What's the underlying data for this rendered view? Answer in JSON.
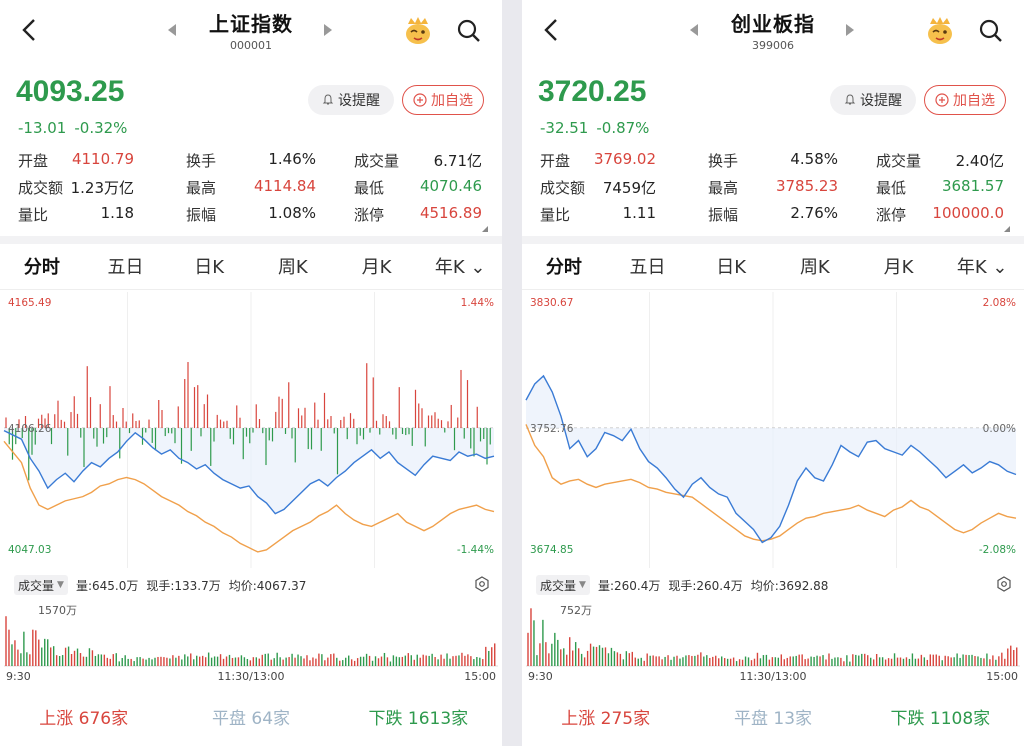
{
  "panels": [
    {
      "title": "上证指数",
      "code": "000001",
      "price": "4093.25",
      "change": "-13.01",
      "change_pct": "-0.32%",
      "alert_label": "设提醒",
      "fav_label": "加自选",
      "stats": [
        [
          {
            "l": "开盘",
            "v": "4110.79",
            "c": "red"
          },
          {
            "l": "换手",
            "v": "1.46%",
            "c": ""
          },
          {
            "l": "成交量",
            "v": "6.71亿",
            "c": ""
          }
        ],
        [
          {
            "l": "成交额",
            "v": "1.23万亿",
            "c": ""
          },
          {
            "l": "最高",
            "v": "4114.84",
            "c": "red"
          },
          {
            "l": "最低",
            "v": "4070.46",
            "c": "green"
          }
        ],
        [
          {
            "l": "量比",
            "v": "1.18",
            "c": ""
          },
          {
            "l": "振幅",
            "v": "1.08%",
            "c": ""
          },
          {
            "l": "涨停",
            "v": "4516.89",
            "c": "red"
          }
        ]
      ],
      "tabs": [
        "分时",
        "五日",
        "日K",
        "周K",
        "月K",
        "年K"
      ],
      "chart": {
        "y_top": "4165.49",
        "y_mid": "4106.26",
        "y_bot": "4047.03",
        "pct_top": "1.44%",
        "pct_mid": "",
        "pct_bot": "-1.44%",
        "price_line": [
          4105,
          4103,
          4101,
          4092,
          4086,
          4078,
          4082,
          4085,
          4081,
          4086,
          4090,
          4088,
          4092,
          4095,
          4100,
          4104,
          4101,
          4097,
          4094,
          4096,
          4092,
          4090,
          4087,
          4089,
          4085,
          4082,
          4080,
          4078,
          4079,
          4074,
          4071,
          4066,
          4068,
          4072,
          4076,
          4080,
          4082,
          4079,
          4083,
          4086,
          4090,
          4093,
          4096,
          4092,
          4095,
          4090,
          4087,
          4084,
          4089,
          4093,
          4092,
          4091,
          4095,
          4093,
          4094,
          4092,
          4093
        ],
        "avg_line": [
          4100,
          4095,
          4090,
          4078,
          4070,
          4068,
          4070,
          4072,
          4073,
          4074,
          4076,
          4079,
          4080,
          4082,
          4083,
          4082,
          4080,
          4077,
          4074,
          4072,
          4070,
          4067,
          4065,
          4062,
          4060,
          4057,
          4055,
          4052,
          4050,
          4048,
          4049,
          4052,
          4055,
          4058,
          4060,
          4062,
          4065,
          4067,
          4070,
          4066,
          4063,
          4061,
          4060,
          4062,
          4064,
          4066,
          4062,
          4060,
          4058,
          4060,
          4063,
          4066,
          4068,
          4069,
          4070,
          4068,
          4067
        ],
        "vol_label": "成交量",
        "vol": "量:645.0万",
        "now_hand": "现手:133.7万",
        "avg_price": "均价:4067.37",
        "vol_max": "1570万",
        "t_start": "9:30",
        "t_mid": "11:30/13:00",
        "t_end": "15:00"
      },
      "breadth": {
        "up_label": "上涨",
        "up": "676家",
        "flat_label": "平盘",
        "flat": "64家",
        "down_label": "下跌",
        "down": "1613家"
      }
    },
    {
      "title": "创业板指",
      "code": "399006",
      "price": "3720.25",
      "change": "-32.51",
      "change_pct": "-0.87%",
      "alert_label": "设提醒",
      "fav_label": "加自选",
      "stats": [
        [
          {
            "l": "开盘",
            "v": "3769.02",
            "c": "red"
          },
          {
            "l": "换手",
            "v": "4.58%",
            "c": ""
          },
          {
            "l": "成交量",
            "v": "2.40亿",
            "c": ""
          }
        ],
        [
          {
            "l": "成交额",
            "v": "7459亿",
            "c": ""
          },
          {
            "l": "最高",
            "v": "3785.23",
            "c": "red"
          },
          {
            "l": "最低",
            "v": "3681.57",
            "c": "green"
          }
        ],
        [
          {
            "l": "量比",
            "v": "1.11",
            "c": ""
          },
          {
            "l": "振幅",
            "v": "2.76%",
            "c": ""
          },
          {
            "l": "涨停",
            "v": "100000.0",
            "c": "red"
          }
        ]
      ],
      "tabs": [
        "分时",
        "五日",
        "日K",
        "周K",
        "月K",
        "年K"
      ],
      "chart": {
        "y_top": "3830.67",
        "y_mid": "3752.76",
        "y_bot": "3674.85",
        "pct_top": "2.08%",
        "pct_mid": "0.00%",
        "pct_bot": "-2.08%",
        "price_line": [
          3770,
          3780,
          3785,
          3775,
          3760,
          3740,
          3745,
          3735,
          3740,
          3750,
          3748,
          3745,
          3752,
          3740,
          3732,
          3728,
          3722,
          3715,
          3710,
          3718,
          3722,
          3716,
          3712,
          3710,
          3700,
          3695,
          3690,
          3682,
          3685,
          3692,
          3705,
          3720,
          3728,
          3722,
          3720,
          3730,
          3742,
          3738,
          3735,
          3744,
          3745,
          3740,
          3738,
          3736,
          3742,
          3738,
          3733,
          3728,
          3722,
          3726,
          3730,
          3725,
          3728,
          3732,
          3730,
          3726,
          3724
        ],
        "avg_line": [
          3755,
          3742,
          3735,
          3722,
          3718,
          3720,
          3721,
          3718,
          3716,
          3718,
          3719,
          3720,
          3721,
          3719,
          3716,
          3715,
          3713,
          3712,
          3711,
          3710,
          3706,
          3702,
          3698,
          3694,
          3690,
          3686,
          3684,
          3683,
          3684,
          3686,
          3690,
          3694,
          3697,
          3698,
          3700,
          3701,
          3702,
          3703,
          3705,
          3702,
          3700,
          3698,
          3702,
          3704,
          3708,
          3704,
          3702,
          3698,
          3694,
          3690,
          3688,
          3690,
          3694,
          3697,
          3700,
          3698,
          3697
        ],
        "vol_label": "成交量",
        "vol": "量:260.4万",
        "now_hand": "现手:260.4万",
        "avg_price": "均价:3692.88",
        "vol_max": "752万",
        "t_start": "9:30",
        "t_mid": "11:30/13:00",
        "t_end": "15:00"
      },
      "breadth": {
        "up_label": "上涨",
        "up": "275家",
        "flat_label": "平盘",
        "flat": "13家",
        "down_label": "下跌",
        "down": "1108家"
      }
    }
  ],
  "colors": {
    "up": "#d8453d",
    "down": "#2e9a4d",
    "price": "#3a7bd5",
    "avg": "#f0a04b"
  },
  "icons": {
    "back": "back-arrow-icon",
    "search": "search-icon",
    "mascot": "mascot-icon",
    "gear": "gear-icon",
    "bell": "bell-icon",
    "plus": "plus-circle-icon"
  }
}
